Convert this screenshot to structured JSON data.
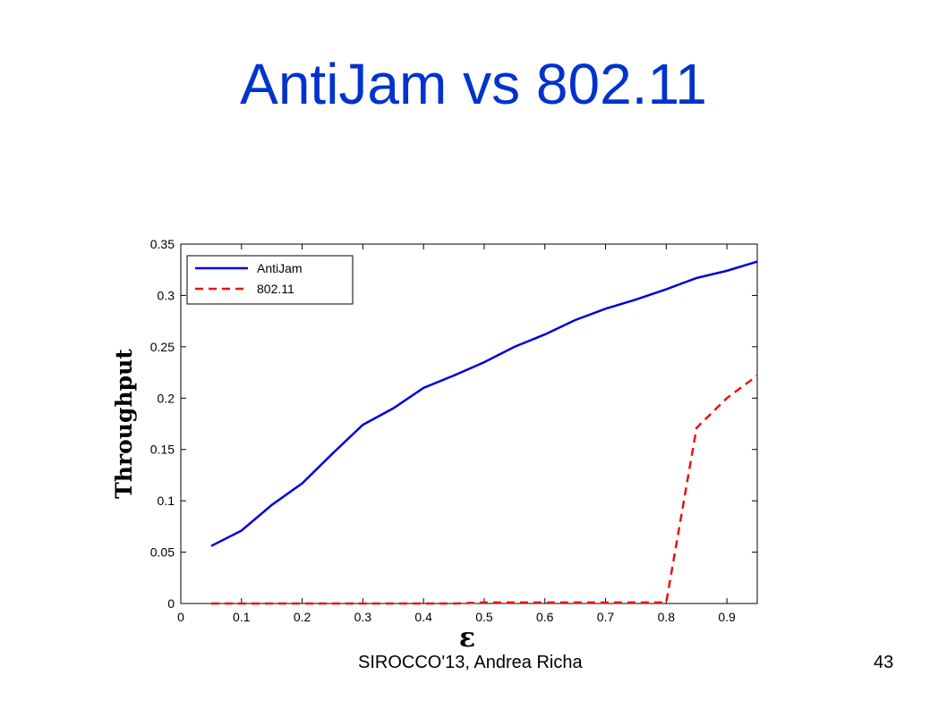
{
  "slide": {
    "title": "AntiJam vs 802.11",
    "footer": "SIROCCO'13, Andrea Richa",
    "page_number": "43"
  },
  "chart_data": {
    "type": "line",
    "xlabel": "ε",
    "ylabel": "Throughput",
    "xlim": [
      0,
      0.95
    ],
    "ylim": [
      0,
      0.35
    ],
    "xticks": [
      "0",
      "0.1",
      "0.2",
      "0.3",
      "0.4",
      "0.5",
      "0.6",
      "0.7",
      "0.8",
      "0.9"
    ],
    "yticks": [
      "0",
      "0.05",
      "0.1",
      "0.15",
      "0.2",
      "0.25",
      "0.3",
      "0.35"
    ],
    "grid": false,
    "legend_position": "top-left",
    "x": [
      0.05,
      0.1,
      0.15,
      0.2,
      0.25,
      0.3,
      0.35,
      0.4,
      0.45,
      0.5,
      0.55,
      0.6,
      0.65,
      0.7,
      0.75,
      0.8,
      0.85,
      0.9,
      0.95
    ],
    "series": [
      {
        "name": "AntiJam",
        "color": "#0000dd",
        "style": "solid",
        "values": [
          0.056,
          0.071,
          0.096,
          0.117,
          0.146,
          0.174,
          0.19,
          0.21,
          0.222,
          0.235,
          0.25,
          0.262,
          0.276,
          0.287,
          0.296,
          0.306,
          0.317,
          0.324,
          0.333
        ]
      },
      {
        "name": "802.11",
        "color": "#ee1111",
        "style": "dashed",
        "values": [
          0,
          0,
          0,
          0,
          0,
          0,
          0,
          0,
          0,
          0.001,
          0.001,
          0.001,
          0.001,
          0.001,
          0.001,
          0.001,
          0.171,
          0.2,
          0.222
        ]
      }
    ]
  }
}
